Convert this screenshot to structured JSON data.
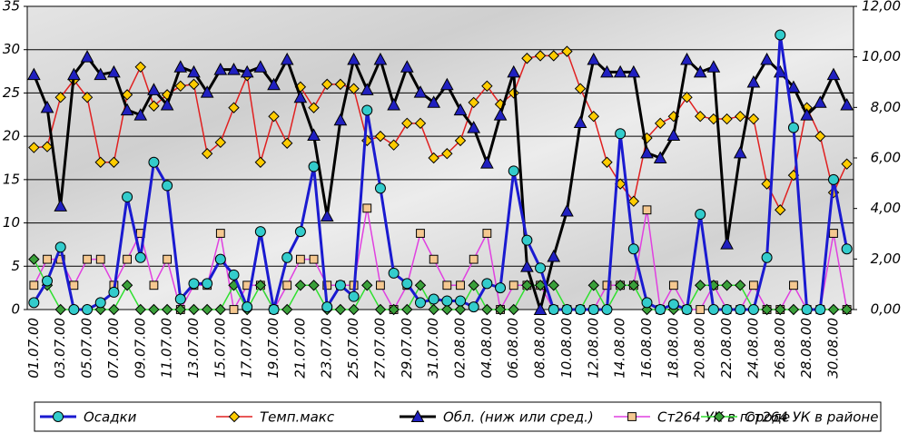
{
  "chart_data": {
    "type": "line",
    "categories": [
      "01.07.00",
      null,
      "03.07.00",
      null,
      "05.07.00",
      null,
      "07.07.00",
      null,
      "09.07.00",
      null,
      "11.07.00",
      null,
      "13.07.00",
      null,
      "15.07.00",
      null,
      "17.07.00",
      null,
      "19.07.00",
      null,
      "21.07.00",
      null,
      "23.07.00",
      null,
      "25.07.00",
      null,
      "27.07.00",
      null,
      "29.07.00",
      null,
      "31.07.00",
      null,
      "02.08.00",
      null,
      "04.08.00",
      null,
      "06.08.00",
      null,
      "08.08.00",
      null,
      "10.08.00",
      null,
      "12.08.00",
      null,
      "14.08.00",
      null,
      "16.08.00",
      null,
      "18.08.00",
      null,
      "20.08.00",
      null,
      "22.08.00",
      null,
      "24.08.00",
      null,
      "26.08.00",
      null,
      "28.08.00",
      null,
      "30.08.00",
      null
    ],
    "ylim": [
      0,
      35
    ],
    "yticks": [
      0,
      5,
      10,
      15,
      20,
      25,
      30,
      35
    ],
    "y2lim": [
      0,
      12
    ],
    "y2ticks": [
      {
        "value": 0,
        "label": "0,00"
      },
      {
        "value": 2,
        "label": "2,00"
      },
      {
        "value": 4,
        "label": "4,00"
      },
      {
        "value": 6,
        "label": "6,00"
      },
      {
        "value": 8,
        "label": "8,00"
      },
      {
        "value": 10,
        "label": "10,00"
      },
      {
        "value": 12,
        "label": "12,00"
      }
    ],
    "grid": true,
    "legend": "bottom",
    "series": [
      {
        "name": "Осадки",
        "color": "#1a1ad0",
        "marker": "circle",
        "marker_color": "#33cccc",
        "width": 3,
        "values": [
          0.8,
          3.3,
          7.2,
          0,
          0,
          0.8,
          2,
          13,
          6,
          17,
          14.3,
          1.2,
          3,
          3,
          5.8,
          4,
          0.3,
          9,
          0,
          6,
          9,
          16.5,
          0.3,
          2.8,
          1.5,
          23,
          14,
          4.2,
          3,
          0.8,
          1.2,
          1,
          1,
          0.3,
          3,
          2.5,
          16,
          8,
          4.8,
          0,
          0,
          0,
          0,
          0,
          20.3,
          7,
          0.8,
          0,
          0.6,
          0,
          11,
          0,
          0,
          0,
          0,
          6,
          31.7,
          21,
          0,
          0,
          15,
          7
        ]
      },
      {
        "name": "Темп.макс",
        "color": "#e02020",
        "marker": "diamond",
        "marker_color": "#ffcc00",
        "width": 1.5,
        "values": [
          18.7,
          18.8,
          24.5,
          26.5,
          24.5,
          17,
          17,
          24.8,
          28,
          23.5,
          24.8,
          25.8,
          26,
          18,
          19.3,
          23.3,
          27,
          17,
          22.3,
          19.2,
          25.7,
          23.3,
          26,
          26,
          25.5,
          19.5,
          20,
          19,
          21.5,
          21.5,
          17.5,
          18,
          19.5,
          23.9,
          25.8,
          23.7,
          25,
          29,
          29.3,
          29.3,
          29.8,
          25.5,
          22.3,
          17,
          14.5,
          12.5,
          19.8,
          21.5,
          22.3,
          24.5,
          22.3,
          22,
          22,
          22.3,
          22,
          14.5,
          11.5,
          15.5,
          23.3,
          20,
          13.5,
          16.8
        ]
      },
      {
        "name": "Обл. (ниж или сред.)",
        "color": "#000000",
        "marker": "triangle",
        "marker_color": "#2020c0",
        "width": 3,
        "axis": "y2",
        "values": [
          9.3,
          8.0,
          4.1,
          9.3,
          10,
          9.3,
          9.4,
          7.9,
          7.7,
          8.7,
          8.1,
          9.6,
          9.4,
          8.6,
          9.5,
          9.5,
          9.4,
          9.6,
          8.9,
          9.9,
          8.4,
          6.9,
          3.7,
          7.5,
          9.9,
          8.7,
          9.9,
          8.1,
          9.6,
          8.6,
          8.2,
          8.9,
          7.9,
          7.2,
          5.8,
          7.7,
          9.4,
          1.7,
          0,
          2.1,
          3.9,
          7.4,
          9.9,
          9.4,
          9.4,
          9.4,
          6.2,
          6.0,
          6.9,
          9.9,
          9.4,
          9.6,
          2.6,
          6.2,
          9.0,
          9.9,
          9.4,
          8.8,
          7.7,
          8.2,
          9.3,
          8.1
        ]
      },
      {
        "name": "Ст264 УК в городе",
        "color": "#e040e0",
        "marker": "square",
        "marker_color": "#f5c890",
        "width": 1.5,
        "values": [
          2.8,
          5.8,
          5.8,
          2.8,
          5.8,
          5.8,
          2.8,
          5.8,
          8.8,
          2.8,
          5.8,
          0,
          2.8,
          2.8,
          8.8,
          0,
          2.8,
          2.8,
          0,
          2.8,
          5.8,
          5.8,
          2.8,
          2.8,
          2.8,
          11.7,
          2.8,
          0,
          2.8,
          8.8,
          5.8,
          2.8,
          2.8,
          5.8,
          8.8,
          0,
          2.8,
          2.8,
          2.8,
          0,
          0,
          0,
          0,
          2.8,
          2.8,
          2.8,
          11.5,
          0,
          2.8,
          0,
          0,
          2.8,
          0,
          0,
          2.8,
          0,
          0,
          2.8,
          0,
          0,
          8.8,
          0
        ]
      },
      {
        "name": "Ст264 УК в районе",
        "color": "#30e030",
        "marker": "diamond",
        "marker_color": "#3aa03a",
        "width": 1.5,
        "values": [
          5.8,
          2.8,
          0,
          0,
          0,
          0,
          0,
          2.8,
          0,
          0,
          0,
          0,
          0,
          0,
          0,
          2.8,
          0,
          2.8,
          0,
          0,
          2.8,
          2.8,
          0,
          0,
          0,
          2.8,
          0,
          0,
          0,
          2.8,
          0,
          0,
          0,
          2.8,
          0,
          0,
          0,
          2.8,
          2.8,
          2.8,
          0,
          0,
          2.8,
          0,
          2.8,
          2.8,
          0,
          0,
          0,
          0,
          2.8,
          2.8,
          2.8,
          2.8,
          0,
          0,
          0,
          0,
          0,
          0,
          0,
          0
        ]
      }
    ]
  }
}
